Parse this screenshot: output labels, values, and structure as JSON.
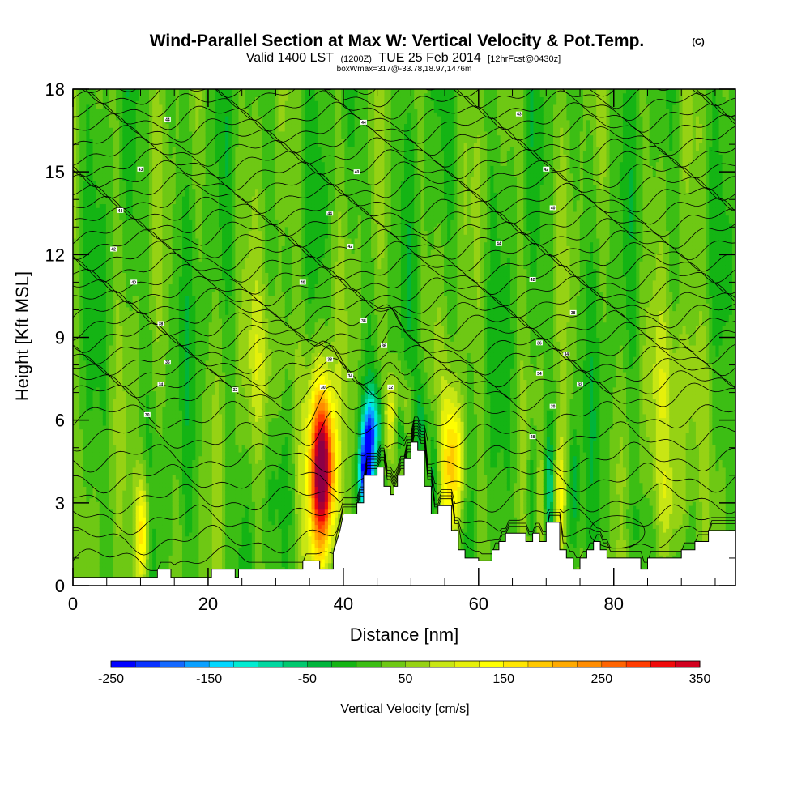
{
  "title": {
    "main": "Wind-Parallel Section at Max W: Vertical Velocity & Pot.Temp.",
    "copyright": "(C)",
    "valid_prefix": "Valid 1400 LST",
    "zulu": "(1200Z)",
    "date": "TUE 25 Feb 2014",
    "forecast": "[12hrFcst@0430z]",
    "boxwmax": "boxWmax=317@-33.78,18.97,1476m"
  },
  "chart_data": {
    "type": "heatmap",
    "title": "Wind-Parallel Section at Max W: Vertical Velocity & Pot.Temp.",
    "xlabel": "Distance [nm]",
    "ylabel": "Height [Kft MSL]",
    "xlim": [
      0,
      98
    ],
    "ylim": [
      0,
      18
    ],
    "x_ticks": [
      0,
      20,
      40,
      60,
      80
    ],
    "x_tick_labels": [
      "0",
      "20",
      "40",
      "60",
      "80"
    ],
    "y_ticks": [
      0,
      3,
      6,
      9,
      12,
      15,
      18
    ],
    "y_tick_labels": [
      "0",
      "3",
      "6",
      "9",
      "12",
      "15",
      "18"
    ],
    "background_w": 20,
    "terrain": [
      [
        0,
        0.3
      ],
      [
        12.5,
        0.3
      ],
      [
        12.5,
        0.6
      ],
      [
        14.5,
        0.6
      ],
      [
        14.5,
        0.3
      ],
      [
        20.5,
        0.3
      ],
      [
        20.5,
        0.6
      ],
      [
        24,
        0.6
      ],
      [
        24,
        0.3
      ],
      [
        24.5,
        0.3
      ],
      [
        24.5,
        0.6
      ],
      [
        34,
        0.6
      ],
      [
        34,
        0.9
      ],
      [
        36.5,
        0.9
      ],
      [
        36.5,
        0.6
      ],
      [
        38.5,
        0.6
      ],
      [
        38.5,
        1.2
      ],
      [
        39.5,
        2.0
      ],
      [
        40,
        2.6
      ],
      [
        42,
        2.6
      ],
      [
        42,
        3.0
      ],
      [
        43,
        3.0
      ],
      [
        43,
        4.0
      ],
      [
        45,
        4.0
      ],
      [
        45,
        4.3
      ],
      [
        46,
        4.3
      ],
      [
        46,
        3.6
      ],
      [
        47,
        3.6
      ],
      [
        47,
        3.3
      ],
      [
        47.5,
        3.3
      ],
      [
        47.5,
        3.6
      ],
      [
        48,
        3.6
      ],
      [
        48,
        4.0
      ],
      [
        49,
        4.0
      ],
      [
        49,
        4.6
      ],
      [
        50,
        4.6
      ],
      [
        50,
        5.2
      ],
      [
        51,
        5.2
      ],
      [
        51,
        4.9
      ],
      [
        52,
        4.9
      ],
      [
        52,
        3.6
      ],
      [
        53,
        3.6
      ],
      [
        53,
        2.6
      ],
      [
        54,
        2.6
      ],
      [
        54,
        2.9
      ],
      [
        56,
        2.9
      ],
      [
        56,
        2.0
      ],
      [
        57,
        2.0
      ],
      [
        57,
        1.3
      ],
      [
        58,
        1.3
      ],
      [
        58,
        1.0
      ],
      [
        60,
        1.0
      ],
      [
        60,
        0.9
      ],
      [
        62,
        0.9
      ],
      [
        62,
        1.3
      ],
      [
        63,
        1.3
      ],
      [
        63,
        1.6
      ],
      [
        64,
        1.6
      ],
      [
        64,
        1.9
      ],
      [
        67,
        1.9
      ],
      [
        67,
        1.6
      ],
      [
        68,
        1.6
      ],
      [
        68,
        1.9
      ],
      [
        69,
        1.9
      ],
      [
        69,
        1.6
      ],
      [
        70,
        1.6
      ],
      [
        70,
        2.3
      ],
      [
        72,
        2.3
      ],
      [
        72,
        1.3
      ],
      [
        73,
        1.3
      ],
      [
        73,
        1.0
      ],
      [
        74,
        1.0
      ],
      [
        74,
        0.6
      ],
      [
        75,
        0.6
      ],
      [
        75,
        1.0
      ],
      [
        76,
        1.0
      ],
      [
        76,
        1.3
      ],
      [
        77,
        1.3
      ],
      [
        77,
        1.6
      ],
      [
        78,
        1.6
      ],
      [
        78,
        1.3
      ],
      [
        79,
        1.3
      ],
      [
        79,
        1.0
      ],
      [
        84,
        1.0
      ],
      [
        84,
        0.6
      ],
      [
        85,
        0.6
      ],
      [
        85,
        1.0
      ],
      [
        90,
        1.0
      ],
      [
        90,
        1.3
      ],
      [
        92,
        1.3
      ],
      [
        92,
        1.6
      ],
      [
        94,
        1.6
      ],
      [
        94,
        2.0
      ],
      [
        98,
        2.0
      ]
    ],
    "w_features": [
      {
        "x": 37.0,
        "z": 4.1,
        "sx": 1.2,
        "sz": 2.0,
        "w": 330
      },
      {
        "x": 36.2,
        "z": 4.8,
        "sx": 1.5,
        "sz": 2.6,
        "w": 90
      },
      {
        "x": 43.5,
        "z": 4.6,
        "sx": 0.7,
        "sz": 1.1,
        "w": -230
      },
      {
        "x": 44.5,
        "z": 5.9,
        "sx": 1.0,
        "sz": 0.9,
        "w": -120
      },
      {
        "x": 42.8,
        "z": 3.8,
        "sx": 0.6,
        "sz": 0.8,
        "w": -90
      },
      {
        "x": 47.0,
        "z": 6.1,
        "sx": 0.9,
        "sz": 1.1,
        "w": 110
      },
      {
        "x": 48.3,
        "z": 5.7,
        "sx": 0.6,
        "sz": 0.8,
        "w": -100
      },
      {
        "x": 49.5,
        "z": 6.4,
        "sx": 0.9,
        "sz": 1.0,
        "w": 70
      },
      {
        "x": 51.3,
        "z": 6.0,
        "sx": 0.7,
        "sz": 1.2,
        "w": -80
      },
      {
        "x": 53.5,
        "z": 4.0,
        "sx": 0.6,
        "sz": 1.6,
        "w": -90
      },
      {
        "x": 55.8,
        "z": 4.3,
        "sx": 1.0,
        "sz": 2.2,
        "w": 140
      },
      {
        "x": 57.0,
        "z": 4.5,
        "sx": 0.9,
        "sz": 1.5,
        "w": 80
      },
      {
        "x": 10.3,
        "z": 1.9,
        "sx": 0.7,
        "sz": 1.5,
        "w": 160
      },
      {
        "x": 68.0,
        "z": 3.2,
        "sx": 0.6,
        "sz": 1.6,
        "w": -70
      },
      {
        "x": 69.3,
        "z": 3.2,
        "sx": 0.6,
        "sz": 1.5,
        "w": 60
      },
      {
        "x": 70.3,
        "z": 3.6,
        "sx": 0.6,
        "sz": 1.4,
        "w": -90
      },
      {
        "x": 72.0,
        "z": 3.0,
        "sx": 0.6,
        "sz": 1.6,
        "w": 120
      },
      {
        "x": 74.2,
        "z": 3.6,
        "sx": 0.5,
        "sz": 1.4,
        "w": -60
      },
      {
        "x": 89.0,
        "z": 3.0,
        "sx": 2.0,
        "sz": 1.4,
        "w": 70
      },
      {
        "x": 83.0,
        "z": 2.3,
        "sx": 2.5,
        "sz": 0.8,
        "w": -20
      },
      {
        "x": 29.0,
        "z": 8.0,
        "sx": 2.5,
        "sz": 2.0,
        "w": 60
      },
      {
        "x": 90.0,
        "z": 7.0,
        "sx": 3.0,
        "sz": 2.0,
        "w": 70
      }
    ],
    "isentrope_count": 36,
    "isentrope_labels": [
      {
        "x": 14,
        "z": 16.9,
        "text": "44"
      },
      {
        "x": 43,
        "z": 16.8,
        "text": "44"
      },
      {
        "x": 66,
        "z": 17.1,
        "text": "43"
      },
      {
        "x": 10,
        "z": 15.1,
        "text": "43"
      },
      {
        "x": 42,
        "z": 15.0,
        "text": "40"
      },
      {
        "x": 70,
        "z": 15.1,
        "text": "42"
      },
      {
        "x": 7,
        "z": 13.6,
        "text": "44"
      },
      {
        "x": 38,
        "z": 13.5,
        "text": "44"
      },
      {
        "x": 71,
        "z": 13.7,
        "text": "40"
      },
      {
        "x": 6,
        "z": 12.2,
        "text": "42"
      },
      {
        "x": 41,
        "z": 12.3,
        "text": "42"
      },
      {
        "x": 63,
        "z": 12.4,
        "text": "44"
      },
      {
        "x": 9,
        "z": 11.0,
        "text": "40"
      },
      {
        "x": 34,
        "z": 11.0,
        "text": "40"
      },
      {
        "x": 68,
        "z": 11.1,
        "text": "42"
      },
      {
        "x": 13,
        "z": 9.5,
        "text": "38"
      },
      {
        "x": 43,
        "z": 9.6,
        "text": "38"
      },
      {
        "x": 74,
        "z": 9.9,
        "text": "38"
      },
      {
        "x": 46,
        "z": 8.7,
        "text": "36"
      },
      {
        "x": 69,
        "z": 8.8,
        "text": "36"
      },
      {
        "x": 14,
        "z": 8.1,
        "text": "36"
      },
      {
        "x": 38,
        "z": 8.2,
        "text": "38"
      },
      {
        "x": 73,
        "z": 8.4,
        "text": "34"
      },
      {
        "x": 41,
        "z": 7.6,
        "text": "34"
      },
      {
        "x": 69,
        "z": 7.7,
        "text": "34"
      },
      {
        "x": 13,
        "z": 7.3,
        "text": "34"
      },
      {
        "x": 24,
        "z": 7.1,
        "text": "32"
      },
      {
        "x": 47,
        "z": 7.2,
        "text": "32"
      },
      {
        "x": 75,
        "z": 7.3,
        "text": "32"
      },
      {
        "x": 37,
        "z": 7.2,
        "text": "30"
      },
      {
        "x": 11,
        "z": 6.2,
        "text": "30"
      },
      {
        "x": 71,
        "z": 6.5,
        "text": "30"
      },
      {
        "x": 68,
        "z": 5.4,
        "text": "28"
      }
    ],
    "colorbar": {
      "label": "Vertical Velocity [cm/s]",
      "min": -250,
      "max": 350,
      "step": 25,
      "tick_labels": [
        "-250",
        "-150",
        "-50",
        "50",
        "150",
        "250",
        "350"
      ],
      "colors": [
        "#0000ff",
        "#0a32ff",
        "#1469ff",
        "#0aa0ff",
        "#00d7ff",
        "#00ebd2",
        "#00d7a0",
        "#00c86e",
        "#00b43c",
        "#14b414",
        "#3cbe14",
        "#6ec814",
        "#96d214",
        "#c8e614",
        "#e6f00a",
        "#ffff00",
        "#ffe600",
        "#ffc800",
        "#ffaa00",
        "#ff8c00",
        "#ff6400",
        "#ff3c00",
        "#f00a0a",
        "#d2001e",
        "#aa0032",
        "#8c0046"
      ]
    }
  }
}
